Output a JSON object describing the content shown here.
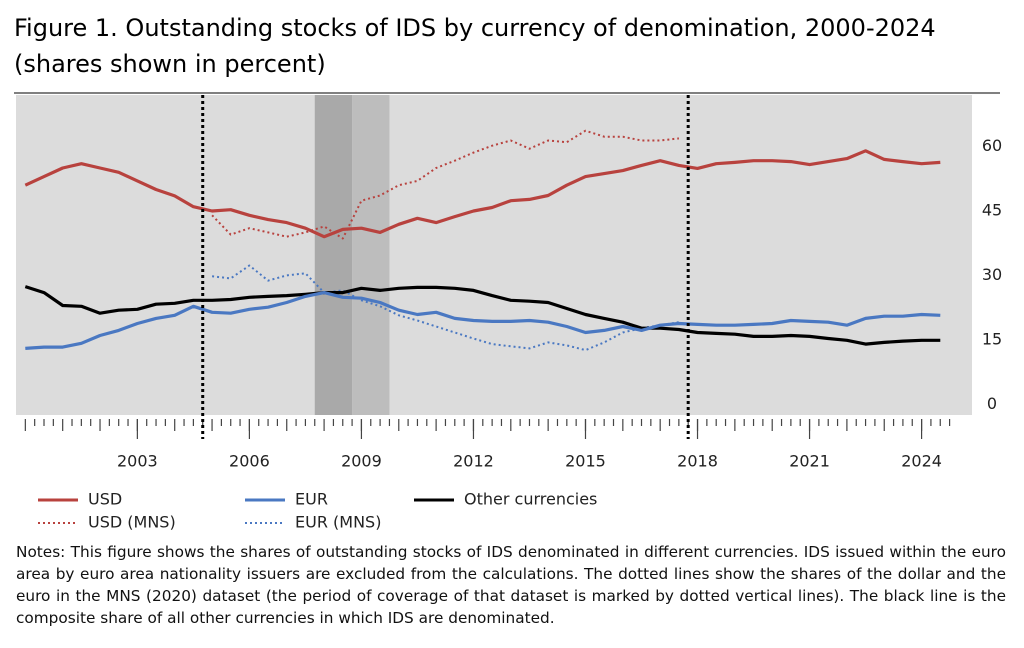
{
  "chart_data": {
    "type": "line",
    "title": "Figure 1. Outstanding stocks of IDS by currency of denomination, 2000-2024",
    "subtitle": "(shares shown in percent)",
    "x": [
      2000.0,
      2000.5,
      2001.0,
      2001.5,
      2002.0,
      2002.5,
      2003.0,
      2003.5,
      2004.0,
      2004.5,
      2005.0,
      2005.5,
      2006.0,
      2006.5,
      2007.0,
      2007.5,
      2008.0,
      2008.5,
      2009.0,
      2009.5,
      2010.0,
      2010.5,
      2011.0,
      2011.5,
      2012.0,
      2012.5,
      2013.0,
      2013.5,
      2014.0,
      2014.5,
      2015.0,
      2015.5,
      2016.0,
      2016.5,
      2017.0,
      2017.5,
      2018.0,
      2018.5,
      2019.0,
      2019.5,
      2020.0,
      2020.5,
      2021.0,
      2021.5,
      2022.0,
      2022.5,
      2023.0,
      2023.5,
      2024.0,
      2024.5
    ],
    "series": [
      {
        "name": "USD",
        "color": "#b8423e",
        "dash": "solid",
        "values": [
          51,
          53,
          55,
          56,
          55,
          54,
          52,
          50,
          48.5,
          46,
          45,
          45.3,
          44,
          43,
          42.3,
          41,
          39,
          40.7,
          41,
          40,
          41.9,
          43.3,
          42.3,
          43.7,
          45,
          45.8,
          47.4,
          47.7,
          48.6,
          51,
          53,
          53.7,
          54.4,
          55.6,
          56.7,
          55.6,
          54.9,
          56,
          56.3,
          56.7,
          56.7,
          56.5,
          55.8,
          56.5,
          57.2,
          59,
          57,
          56.5,
          56,
          56.3
        ]
      },
      {
        "name": "EUR",
        "color": "#4a78c2",
        "dash": "solid",
        "values": [
          13,
          13.3,
          13.3,
          14.2,
          16,
          17.2,
          18.8,
          20,
          20.7,
          22.8,
          21.4,
          21.2,
          22.1,
          22.6,
          23.7,
          25.1,
          26,
          24.9,
          24.7,
          23.7,
          21.9,
          20.9,
          21.4,
          20,
          19.5,
          19.3,
          19.3,
          19.5,
          19.1,
          18.1,
          16.7,
          17.2,
          18.1,
          17.2,
          18.4,
          18.8,
          18.6,
          18.4,
          18.4,
          18.6,
          18.8,
          19.5,
          19.3,
          19.1,
          18.4,
          20,
          20.5,
          20.5,
          20.9,
          20.7
        ]
      },
      {
        "name": "Other currencies",
        "color": "#000000",
        "dash": "solid",
        "values": [
          27.4,
          26,
          23,
          22.8,
          21.2,
          21.9,
          22.1,
          23.3,
          23.5,
          24.2,
          24.2,
          24.4,
          24.9,
          25.1,
          25.3,
          25.6,
          26,
          26,
          27,
          26.5,
          27,
          27.2,
          27.2,
          27,
          26.5,
          25.3,
          24.2,
          24,
          23.7,
          22.3,
          20.9,
          20,
          19.1,
          17.7,
          17.7,
          17.4,
          16.7,
          16.5,
          16.3,
          15.8,
          15.8,
          16,
          15.8,
          15.3,
          14.9,
          14,
          14.4,
          14.7,
          14.9,
          14.9
        ]
      },
      {
        "name": "USD (MNS)",
        "color": "#b8423e",
        "dash": "dotted",
        "values": [
          null,
          null,
          null,
          null,
          null,
          null,
          null,
          null,
          null,
          null,
          44,
          39.5,
          41,
          40,
          39,
          40,
          41.4,
          38.6,
          47.4,
          48.6,
          51,
          52,
          55,
          56.7,
          58.6,
          60.2,
          61.4,
          59.5,
          61.4,
          61,
          63.7,
          62.3,
          62.3,
          61.4,
          61.4,
          61.9,
          null,
          null,
          null,
          null,
          null,
          null,
          null,
          null,
          null,
          null,
          null,
          null,
          null,
          null
        ]
      },
      {
        "name": "EUR (MNS)",
        "color": "#4a78c2",
        "dash": "dotted",
        "values": [
          null,
          null,
          null,
          null,
          null,
          null,
          null,
          null,
          null,
          null,
          29.8,
          29.3,
          32.3,
          28.8,
          30,
          30.5,
          26,
          26.5,
          24.2,
          22.8,
          20.7,
          19.5,
          18.1,
          16.7,
          15.3,
          14,
          13.5,
          13,
          14.4,
          13.7,
          12.6,
          14.4,
          16.7,
          17.7,
          18.4,
          19.1,
          null,
          null,
          null,
          null,
          null,
          null,
          null,
          null,
          null,
          null,
          null,
          null,
          null,
          null
        ]
      }
    ],
    "legend_order": [
      0,
      1,
      2,
      3,
      4
    ],
    "xlim": [
      1999.75,
      2025.35
    ],
    "xticks": [
      {
        "value": 2003,
        "label": "2003"
      },
      {
        "value": 2006,
        "label": "2006"
      },
      {
        "value": 2009,
        "label": "2009"
      },
      {
        "value": 2012,
        "label": "2012"
      },
      {
        "value": 2015,
        "label": "2015"
      },
      {
        "value": 2018,
        "label": "2018"
      },
      {
        "value": 2021,
        "label": "2021"
      },
      {
        "value": 2024,
        "label": "2024"
      }
    ],
    "minor_xticks": [
      2000,
      2001,
      2002,
      2003,
      2004,
      2005,
      2006,
      2007,
      2008,
      2009,
      2010,
      2011,
      2012,
      2013,
      2014,
      2015,
      2016,
      2017,
      2018,
      2019,
      2020,
      2021,
      2022,
      2023,
      2024
    ],
    "ylim": [
      -2.5,
      72
    ],
    "yticks": [
      0,
      15,
      30,
      45,
      60
    ],
    "shaded_periods": [
      {
        "range": [
          2007.75,
          2008.75
        ],
        "color": "#a9a9a9"
      },
      {
        "range": [
          2008.75,
          2009.75
        ],
        "color": "#bdbdbd"
      }
    ],
    "mns_period": [
      2004.75,
      2017.75
    ],
    "notes": "Notes: This figure shows the shares of outstanding stocks of IDS denominated in different currencies. IDS issued within the euro area by euro area nationality issuers are excluded from the calculations. The dotted lines show the shares of the dollar and the euro in the MNS (2020) dataset (the period of coverage of that dataset is marked by dotted vertical lines). The black line is the composite share of all other currencies in which IDS are denominated."
  }
}
